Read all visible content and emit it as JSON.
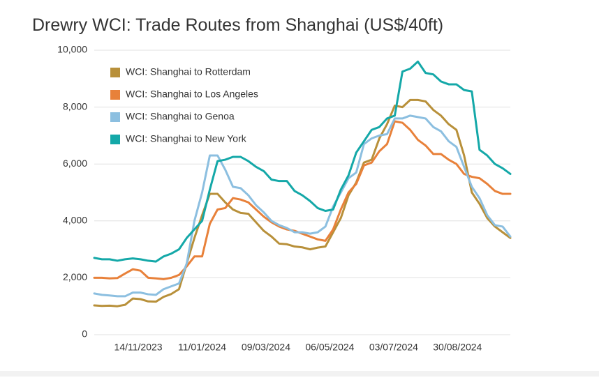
{
  "chart_data": {
    "type": "line",
    "title": "Drewry WCI: Trade Routes from Shanghai (US$/40ft)",
    "x": [
      "2023-10-05",
      "2023-10-12",
      "2023-10-19",
      "2023-10-26",
      "2023-11-02",
      "2023-11-09",
      "2023-11-16",
      "2023-11-23",
      "2023-11-30",
      "2023-12-07",
      "2023-12-14",
      "2023-12-21",
      "2023-12-28",
      "2024-01-04",
      "2024-01-11",
      "2024-01-18",
      "2024-01-25",
      "2024-02-01",
      "2024-02-08",
      "2024-02-15",
      "2024-02-22",
      "2024-02-29",
      "2024-03-07",
      "2024-03-14",
      "2024-03-21",
      "2024-03-28",
      "2024-04-04",
      "2024-04-11",
      "2024-04-18",
      "2024-04-25",
      "2024-05-02",
      "2024-05-09",
      "2024-05-16",
      "2024-05-23",
      "2024-05-30",
      "2024-06-06",
      "2024-06-13",
      "2024-06-20",
      "2024-06-27",
      "2024-07-04",
      "2024-07-11",
      "2024-07-18",
      "2024-07-25",
      "2024-08-01",
      "2024-08-08",
      "2024-08-15",
      "2024-08-22",
      "2024-08-29",
      "2024-09-05",
      "2024-09-12",
      "2024-09-19",
      "2024-09-26",
      "2024-10-03",
      "2024-10-10",
      "2024-10-17"
    ],
    "xlim": [
      "2023-10-05",
      "2024-10-17"
    ],
    "xticks": [
      {
        "value": "2023-11-14",
        "label": "14/11/2023"
      },
      {
        "value": "2024-01-11",
        "label": "11/01/2024"
      },
      {
        "value": "2024-03-09",
        "label": "09/03/2024"
      },
      {
        "value": "2024-05-06",
        "label": "06/05/2024"
      },
      {
        "value": "2024-07-03",
        "label": "03/07/2024"
      },
      {
        "value": "2024-08-30",
        "label": "30/08/2024"
      }
    ],
    "ylim": [
      0,
      10000
    ],
    "yticks": [
      0,
      {
        "value": 2000,
        "label": "2,000"
      },
      {
        "value": 4000,
        "label": "4,000"
      },
      {
        "value": 6000,
        "label": "6,000"
      },
      {
        "value": 8000,
        "label": "8,000"
      },
      {
        "value": 10000,
        "label": "10,000"
      }
    ],
    "grid": true,
    "legend": "upper-left",
    "series": [
      {
        "name": "WCI: Shanghai to Rotterdam",
        "color": "#b8903a",
        "values": [
          1030,
          1010,
          1020,
          1000,
          1050,
          1270,
          1250,
          1170,
          1160,
          1330,
          1430,
          1600,
          2500,
          3400,
          4200,
          4950,
          4950,
          4650,
          4400,
          4280,
          4250,
          3950,
          3650,
          3450,
          3200,
          3180,
          3100,
          3070,
          3000,
          3060,
          3100,
          3600,
          4100,
          4900,
          5350,
          6050,
          6150,
          6900,
          7400,
          8050,
          8000,
          8250,
          8250,
          8200,
          7900,
          7700,
          7400,
          7200,
          6300,
          5000,
          4600,
          4100,
          3800,
          3600,
          3400
        ]
      },
      {
        "name": "WCI: Shanghai to Los Angeles",
        "color": "#e8813a",
        "values": [
          2000,
          2000,
          1980,
          1990,
          2150,
          2300,
          2250,
          2000,
          1980,
          1950,
          2000,
          2100,
          2400,
          2750,
          2750,
          3900,
          4400,
          4450,
          4800,
          4750,
          4650,
          4400,
          4150,
          3950,
          3800,
          3700,
          3650,
          3550,
          3450,
          3350,
          3300,
          3700,
          4400,
          5000,
          5300,
          5950,
          6050,
          6450,
          6700,
          7500,
          7450,
          7200,
          6850,
          6650,
          6350,
          6350,
          6150,
          6000,
          5650,
          5550,
          5500,
          5300,
          5050,
          4950,
          4950
        ]
      },
      {
        "name": "WCI: Shanghai to Genoa",
        "color": "#8cbfe0",
        "values": [
          1450,
          1400,
          1380,
          1350,
          1350,
          1480,
          1480,
          1420,
          1400,
          1600,
          1700,
          1800,
          2500,
          4000,
          5000,
          6300,
          6300,
          5800,
          5200,
          5150,
          4900,
          4550,
          4300,
          4000,
          3850,
          3750,
          3600,
          3600,
          3550,
          3600,
          3800,
          4500,
          5000,
          5500,
          5700,
          6700,
          6900,
          7000,
          7050,
          7600,
          7600,
          7700,
          7650,
          7600,
          7300,
          7150,
          6800,
          6600,
          5900,
          5200,
          4800,
          4200,
          3850,
          3800,
          3450
        ]
      },
      {
        "name": "WCI: Shanghai to New York",
        "color": "#14a8a8",
        "values": [
          2700,
          2650,
          2650,
          2600,
          2650,
          2680,
          2650,
          2600,
          2570,
          2750,
          2850,
          3000,
          3400,
          3700,
          4000,
          5100,
          6100,
          6150,
          6250,
          6250,
          6100,
          5900,
          5750,
          5450,
          5400,
          5400,
          5050,
          4900,
          4700,
          4450,
          4350,
          4400,
          5100,
          5600,
          6400,
          6800,
          7200,
          7300,
          7600,
          7700,
          9250,
          9350,
          9600,
          9200,
          9150,
          8900,
          8800,
          8800,
          8600,
          8550,
          6500,
          6300,
          6000,
          5850,
          5650
        ]
      }
    ]
  }
}
